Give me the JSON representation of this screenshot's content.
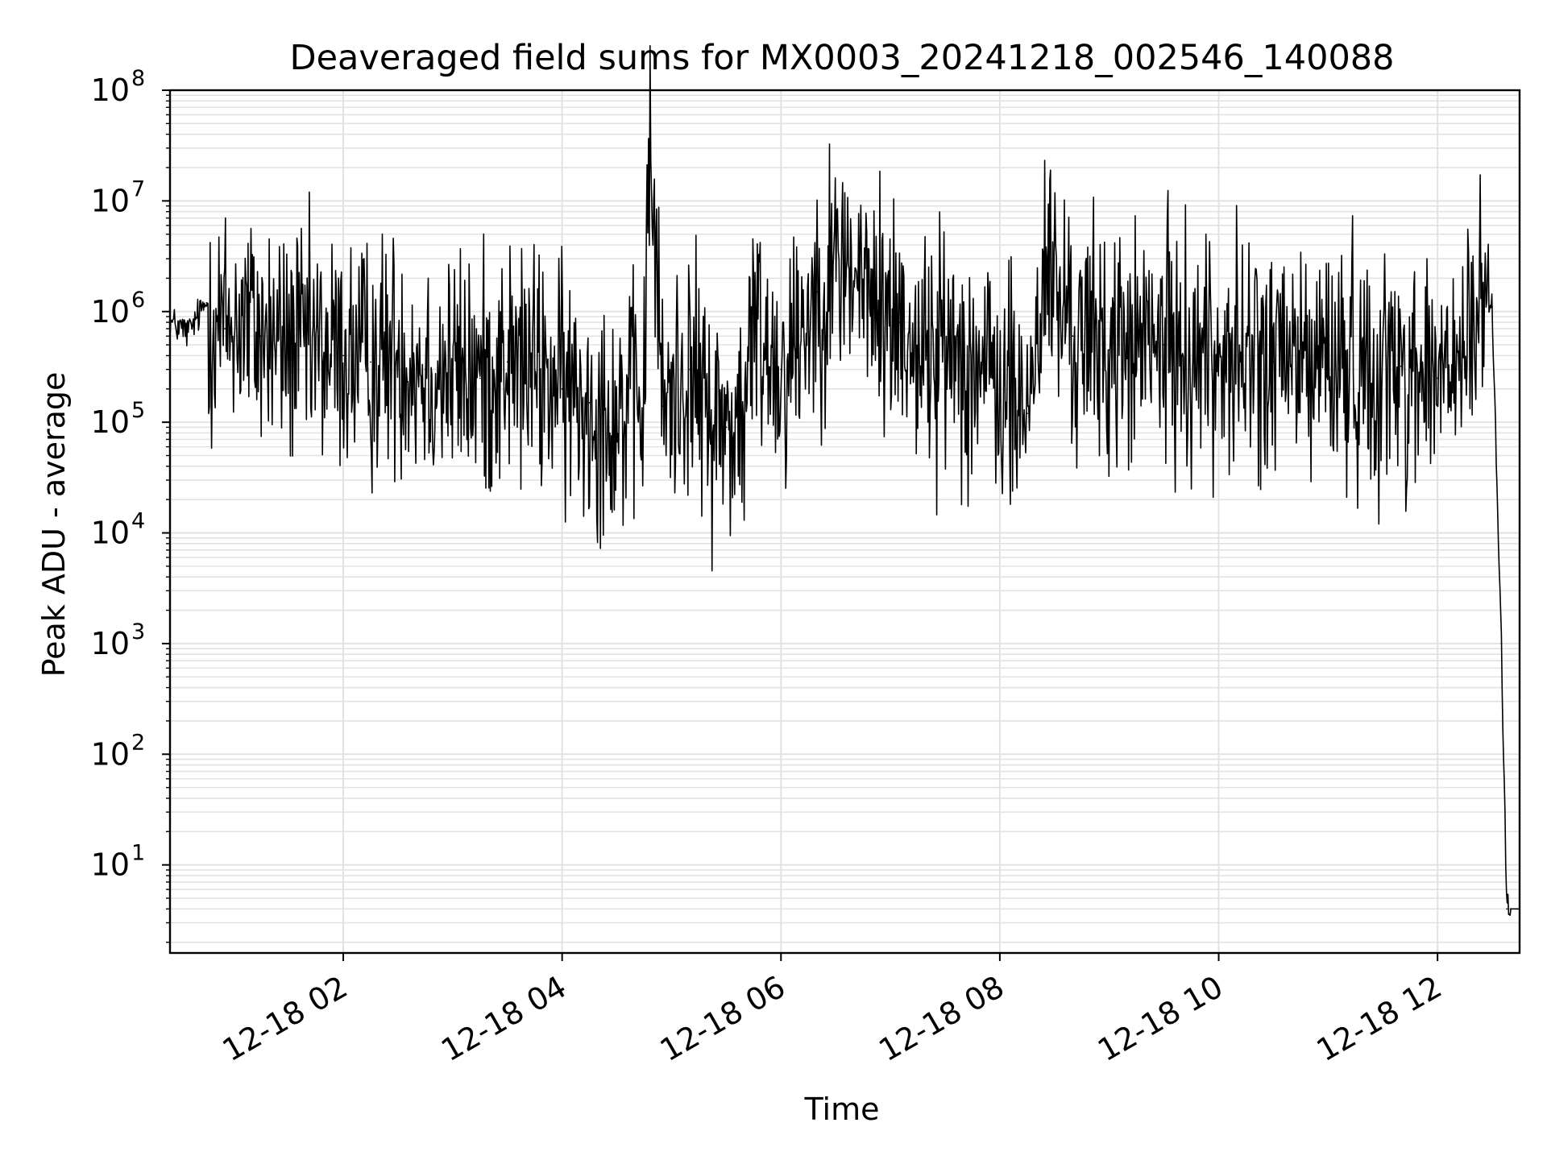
{
  "chart_data": {
    "type": "line",
    "title": "Deaveraged field sums for MX0003_20241218_002546_140088",
    "xlabel": "Time",
    "ylabel": "Peak ADU - average",
    "xscale": "time",
    "yscale": "log",
    "xlim": [
      "2024-12-18 00:25",
      "2024-12-18 12:45"
    ],
    "ylim": [
      1.6,
      100000000
    ],
    "grid": "major and minor",
    "legend": "none",
    "line_color": "#000000",
    "x_tick_labels": [
      "12-18 02",
      "12-18 04",
      "12-18 06",
      "12-18 08",
      "12-18 10",
      "12-18 12"
    ],
    "x_tick_times": [
      "2024-12-18 02:00",
      "2024-12-18 04:00",
      "2024-12-18 06:00",
      "2024-12-18 08:00",
      "2024-12-18 10:00",
      "2024-12-18 12:00"
    ],
    "y_ticks": [
      {
        "base": "10",
        "exp": "1"
      },
      {
        "base": "10",
        "exp": "2"
      },
      {
        "base": "10",
        "exp": "3"
      },
      {
        "base": "10",
        "exp": "4"
      },
      {
        "base": "10",
        "exp": "5"
      },
      {
        "base": "10",
        "exp": "6"
      },
      {
        "base": "10",
        "exp": "7"
      },
      {
        "base": "10",
        "exp": "8"
      }
    ],
    "series": [
      {
        "x": [
          "2024-12-18 00:25",
          "2024-12-18 00:35",
          "2024-12-18 00:45",
          "2024-12-18 00:55",
          "2024-12-18 01:05",
          "2024-12-18 01:15",
          "2024-12-18 01:30",
          "2024-12-18 01:45",
          "2024-12-18 02:00",
          "2024-12-18 02:15",
          "2024-12-18 02:30",
          "2024-12-18 02:45",
          "2024-12-18 03:00",
          "2024-12-18 03:15",
          "2024-12-18 03:30",
          "2024-12-18 03:45",
          "2024-12-18 04:00",
          "2024-12-18 04:15",
          "2024-12-18 04:30",
          "2024-12-18 04:45",
          "2024-12-18 04:48",
          "2024-12-18 04:55",
          "2024-12-18 05:10",
          "2024-12-18 05:20",
          "2024-12-18 05:30",
          "2024-12-18 05:40",
          "2024-12-18 05:45",
          "2024-12-18 06:00",
          "2024-12-18 06:20",
          "2024-12-18 06:35",
          "2024-12-18 06:50",
          "2024-12-18 07:05",
          "2024-12-18 07:20",
          "2024-12-18 07:35",
          "2024-12-18 07:50",
          "2024-12-18 08:00",
          "2024-12-18 08:15",
          "2024-12-18 08:25",
          "2024-12-18 08:40",
          "2024-12-18 09:00",
          "2024-12-18 09:30",
          "2024-12-18 10:00",
          "2024-12-18 10:30",
          "2024-12-18 11:00",
          "2024-12-18 11:20",
          "2024-12-18 11:40",
          "2024-12-18 12:00",
          "2024-12-18 12:15",
          "2024-12-18 12:25",
          "2024-12-18 12:30",
          "2024-12-18 12:35",
          "2024-12-18 12:38",
          "2024-12-18 12:40",
          "2024-12-18 12:45"
        ],
        "y": [
          800000,
          650000,
          1200000,
          700000,
          900000,
          600000,
          500000,
          450000,
          400000,
          350000,
          450000,
          300000,
          280000,
          250000,
          350000,
          300000,
          200000,
          150000,
          120000,
          150000,
          47000000,
          140000,
          300000,
          120000,
          90000,
          100000,
          800000,
          300000,
          1500000,
          3000000,
          1200000,
          800000,
          400000,
          500000,
          300000,
          200000,
          120000,
          2500000,
          600000,
          450000,
          500000,
          400000,
          350000,
          380000,
          300000,
          320000,
          250000,
          350000,
          1200000,
          1100000,
          1000,
          4,
          4,
          4
        ]
      }
    ]
  }
}
